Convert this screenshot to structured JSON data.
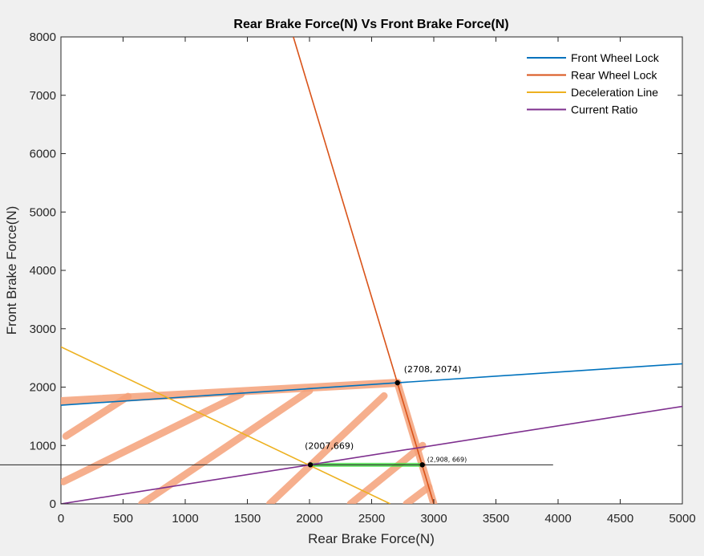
{
  "chart_data": {
    "type": "line",
    "title": "Rear Brake Force(N) Vs Front Brake Force(N)",
    "xlabel": "Rear Brake Force(N)",
    "ylabel": "Front Brake Force(N)",
    "xlim": [
      0,
      5000
    ],
    "ylim": [
      0,
      8000
    ],
    "xticks": [
      "0",
      "500",
      "1000",
      "1500",
      "2000",
      "2500",
      "3000",
      "3500",
      "4000",
      "4500",
      "5000"
    ],
    "yticks": [
      "0",
      "1000",
      "2000",
      "3000",
      "4000",
      "5000",
      "6000",
      "7000",
      "8000"
    ],
    "grid": false,
    "legend_position": "top-right",
    "series": [
      {
        "name": "Front Wheel Lock",
        "color": "#0072bd",
        "x": [
          0,
          5000
        ],
        "y": [
          1690,
          2400
        ]
      },
      {
        "name": "Rear Wheel Lock",
        "color": "#d95319",
        "x": [
          1870,
          3000
        ],
        "y": [
          8000,
          0
        ]
      },
      {
        "name": "Deceleration Line",
        "color": "#edb120",
        "x": [
          0,
          2650
        ],
        "y": [
          2690,
          0
        ]
      },
      {
        "name": "Current Ratio",
        "color": "#7e2f8e",
        "x": [
          0,
          5000
        ],
        "y": [
          0,
          1670
        ]
      }
    ],
    "annotations": [
      {
        "text": "(2708, 2074)",
        "x": 2708,
        "y": 2074
      },
      {
        "text": "(2007,669)",
        "x": 2007,
        "y": 669
      },
      {
        "text": "(2,908, 669)",
        "x": 2908,
        "y": 669
      }
    ],
    "overlay": {
      "highlight_color": "#f5a27a",
      "green_color": "#3ddc3d",
      "region_outline": [
        [
          0,
          1760
        ],
        [
          2708,
          2074
        ],
        [
          2908,
          669
        ],
        [
          2007,
          669
        ]
      ],
      "hatch_lines": [
        [
          [
            40,
            1160
          ],
          [
            540,
            1840
          ]
        ],
        [
          [
            20,
            380
          ],
          [
            1450,
            1880
          ]
        ],
        [
          [
            650,
            0
          ],
          [
            2000,
            1940
          ]
        ],
        [
          [
            1680,
            0
          ],
          [
            2600,
            1850
          ]
        ],
        [
          [
            2330,
            0
          ],
          [
            2910,
            1000
          ]
        ],
        [
          [
            2780,
            0
          ],
          [
            2960,
            290
          ]
        ]
      ],
      "green_segment": [
        [
          2007,
          669
        ],
        [
          2908,
          669
        ]
      ],
      "horizontal_rule": {
        "y": 669,
        "x_start": -480,
        "x_end": 3960
      }
    }
  }
}
